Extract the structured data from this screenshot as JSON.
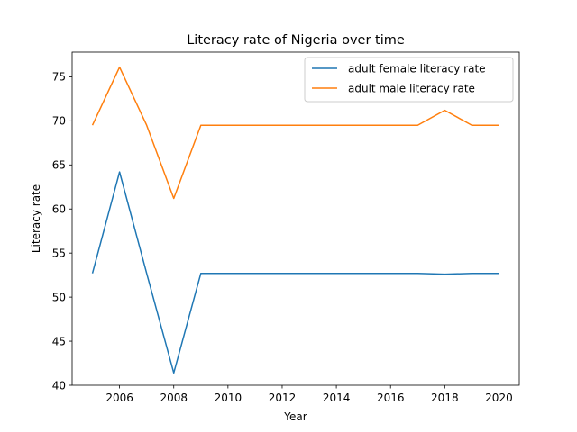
{
  "chart_data": {
    "type": "line",
    "title": "Literacy rate of Nigeria over time",
    "xlabel": "Year",
    "ylabel": "Literacy rate",
    "xlim": [
      2004.25,
      2020.75
    ],
    "ylim": [
      40.0,
      77.8
    ],
    "x_ticks": [
      2006,
      2008,
      2010,
      2012,
      2014,
      2016,
      2018,
      2020
    ],
    "y_ticks": [
      40,
      45,
      50,
      55,
      60,
      65,
      70,
      75
    ],
    "grid": false,
    "legend_position": "top-right",
    "x": [
      2005,
      2006,
      2007,
      2008,
      2009,
      2010,
      2011,
      2012,
      2013,
      2014,
      2015,
      2016,
      2017,
      2018,
      2019,
      2020
    ],
    "series": [
      {
        "name": "adult female literacy rate",
        "color": "#1f77b4",
        "values": [
          52.7,
          64.2,
          52.7,
          41.4,
          52.7,
          52.7,
          52.7,
          52.7,
          52.7,
          52.7,
          52.7,
          52.7,
          52.7,
          52.6,
          52.7,
          52.7
        ]
      },
      {
        "name": "adult male literacy rate",
        "color": "#ff7f0e",
        "values": [
          69.5,
          76.1,
          69.5,
          61.2,
          69.5,
          69.5,
          69.5,
          69.5,
          69.5,
          69.5,
          69.5,
          69.5,
          69.5,
          71.2,
          69.5,
          69.5
        ]
      }
    ]
  }
}
